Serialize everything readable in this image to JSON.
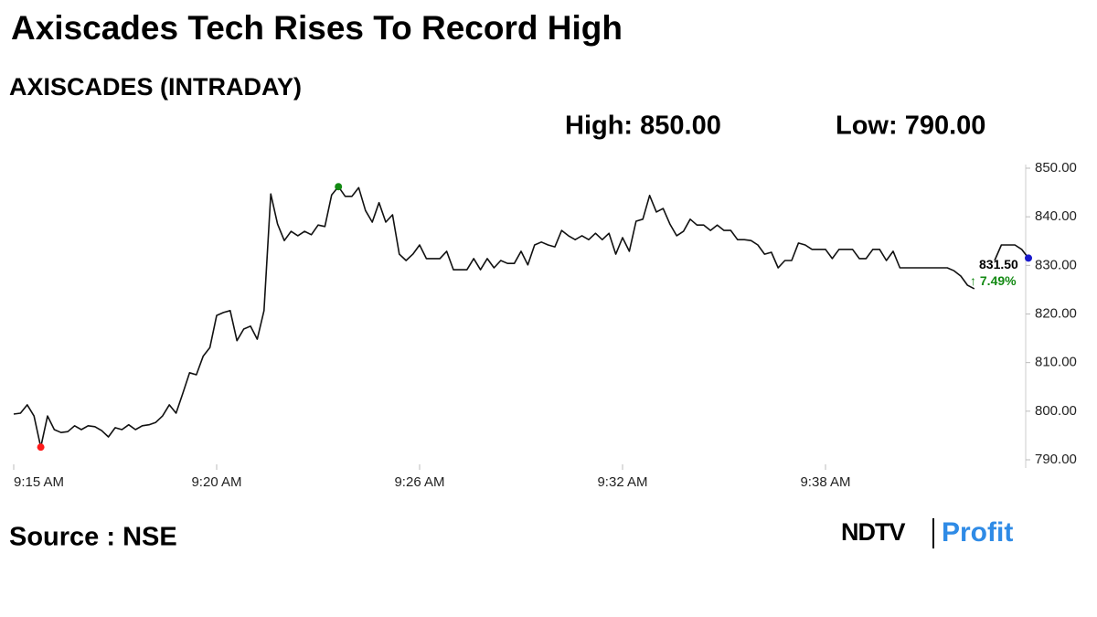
{
  "chart_data": {
    "type": "line",
    "title": "Axiscades Tech Rises To Record High",
    "subtitle": "AXISCADES (INTRADAY)",
    "high_label": "High: 850.00",
    "low_label": "Low: 790.00",
    "source": "Source : NSE",
    "logo": [
      "NDTV",
      "Profit"
    ],
    "annotations": [
      "831.50",
      "↑ 7.49%"
    ],
    "categories": [
      "9:15 AM",
      null,
      null,
      null,
      null,
      null,
      null,
      null,
      null,
      null,
      null,
      null,
      null,
      null,
      null,
      null,
      null,
      null,
      null,
      null,
      null,
      null,
      null,
      null,
      null,
      null,
      null,
      null,
      null,
      null,
      "9:20 AM",
      null,
      null,
      null,
      null,
      null,
      null,
      null,
      null,
      null,
      null,
      null,
      null,
      null,
      null,
      null,
      null,
      null,
      null,
      null,
      null,
      null,
      null,
      null,
      null,
      null,
      null,
      null,
      null,
      null,
      "9:26 AM",
      null,
      null,
      null,
      null,
      null,
      null,
      null,
      null,
      null,
      null,
      null,
      null,
      null,
      null,
      null,
      null,
      null,
      null,
      null,
      null,
      null,
      null,
      null,
      null,
      null,
      null,
      null,
      null,
      null,
      "9:32 AM",
      null,
      null,
      null,
      null,
      null,
      null,
      null,
      null,
      null,
      null,
      null,
      null,
      null,
      null,
      null,
      null,
      null,
      null,
      null,
      null,
      null,
      null,
      null,
      null,
      null,
      null,
      null,
      null,
      null,
      "9:38 AM",
      null,
      null,
      null,
      null,
      null,
      null,
      null,
      null,
      null,
      null,
      null,
      null,
      null,
      null,
      null,
      null,
      null,
      null,
      null,
      null,
      null,
      null,
      null,
      null,
      null,
      null,
      null,
      null,
      null,
      null
    ],
    "values": [
      799.4,
      799.6,
      801.3,
      799,
      792.6,
      799,
      796.2,
      795.6,
      795.8,
      797,
      796.2,
      797,
      796.8,
      796,
      794.7,
      796.6,
      796.2,
      797.2,
      796.2,
      797,
      797.2,
      797.7,
      799,
      801.3,
      799.6,
      803.7,
      807.9,
      807.5,
      811.3,
      813.1,
      819.7,
      820.3,
      820.7,
      814.5,
      816.9,
      817.5,
      814.8,
      820.7,
      844.7,
      838.5,
      835.1,
      837,
      836.1,
      837,
      836.3,
      838.3,
      838,
      844.5,
      846.2,
      844.2,
      844.2,
      846,
      841.3,
      838.9,
      842.9,
      838.9,
      840.4,
      832.3,
      831,
      832.3,
      834.2,
      831.4,
      831.4,
      831.4,
      832.9,
      829.1,
      829.1,
      829.1,
      831.4,
      829.1,
      831.4,
      829.5,
      831,
      830.4,
      830.4,
      832.9,
      830.1,
      834.2,
      834.8,
      834.2,
      833.8,
      837.2,
      836.1,
      835.3,
      836.1,
      835.3,
      836.6,
      835.3,
      836.6,
      832.3,
      835.7,
      832.9,
      839.1,
      839.5,
      844.4,
      841,
      841.7,
      838.5,
      836.1,
      837,
      839.5,
      838.3,
      838.3,
      837.2,
      838.3,
      837.2,
      837.2,
      835.3,
      835.3,
      835.1,
      834.2,
      832.3,
      832.7,
      829.5,
      831,
      831,
      834.6,
      834.2,
      833.3,
      833.3,
      833.3,
      831.4,
      833.3,
      833.3,
      833.3,
      831.4,
      831.4,
      833.3,
      833.3,
      831,
      832.9,
      829.5,
      829.5,
      829.5,
      829.5,
      829.5,
      829.5,
      829.5,
      829.5,
      828.9,
      827.8,
      825.9,
      825.2,
      null,
      null,
      831,
      834.2,
      834.2,
      834.2,
      833.3,
      831.5
    ],
    "color": "#111111",
    "min_color": "#ff1a1a",
    "max_color": "#138a13",
    "last_color": "#1a1acc",
    "change_color": "#138a13",
    "ylim": [
      790,
      850
    ],
    "yticks": [
      {
        "value": 790,
        "label": "790.00"
      },
      {
        "value": 800,
        "label": "800.00"
      },
      {
        "value": 810,
        "label": "810.00"
      },
      {
        "value": 820,
        "label": "820.00"
      },
      {
        "value": 830,
        "label": "830.00"
      },
      {
        "value": 840,
        "label": "840.00"
      },
      {
        "value": 850,
        "label": "850.00"
      }
    ],
    "grid": false
  }
}
